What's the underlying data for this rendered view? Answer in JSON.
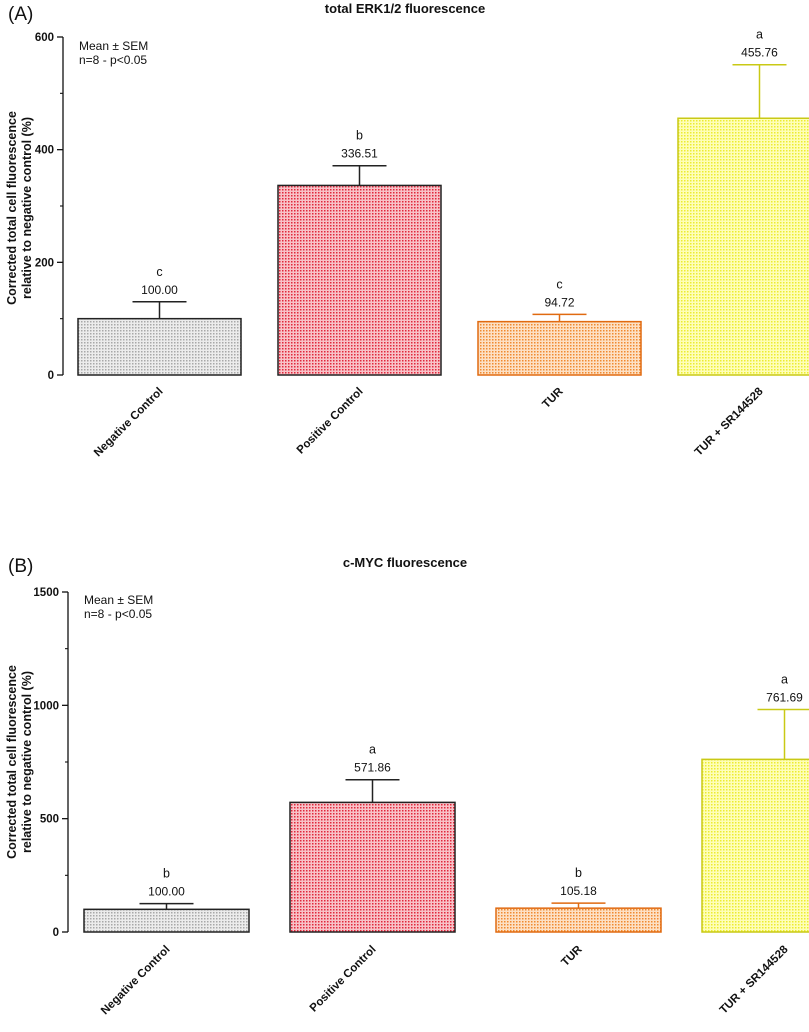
{
  "colors": {
    "negative_fill": "#d9d9d9",
    "negative_stroke": "#222222",
    "positive_fill": "#f07a86",
    "positive_stroke": "#222222",
    "tur_fill": "#f8b27a",
    "tur_stroke": "#e06a10",
    "sr_fill": "#fbfb7a",
    "sr_stroke": "#c9c915"
  },
  "chart_data": [
    {
      "type": "bar",
      "panel": "(A)",
      "title": "total ERK1/2 fluorescence",
      "ylabel_lines": [
        "Corrected total cell fluorescence",
        "relative to negative control (%)"
      ],
      "xlabel": "",
      "ylim": [
        0,
        600
      ],
      "yticks": [
        0,
        200,
        400,
        600
      ],
      "note_lines": [
        "Mean ± SEM",
        "n=8 - p<0.05"
      ],
      "categories": [
        "Negative Control",
        "Positive Control",
        "TUR",
        "TUR + SR144528"
      ],
      "values": [
        100.0,
        336.51,
        94.72,
        455.76
      ],
      "errors": [
        30,
        35,
        13,
        95
      ],
      "value_labels": [
        "100.00",
        "336.51",
        "94.72",
        "455.76"
      ],
      "significance": [
        "c",
        "b",
        "c",
        "a"
      ]
    },
    {
      "type": "bar",
      "panel": "(B)",
      "title": "c-MYC fluorescence",
      "ylabel_lines": [
        "Corrected total cell fluorescence",
        "relative to negative control (%)"
      ],
      "xlabel": "",
      "ylim": [
        0,
        1500
      ],
      "yticks": [
        0,
        500,
        1000,
        1500
      ],
      "note_lines": [
        "Mean ± SEM",
        "n=8 - p<0.05"
      ],
      "categories": [
        "Negative Control",
        "Positive Control",
        "TUR",
        "TUR + SR144528"
      ],
      "values": [
        100.0,
        571.86,
        105.18,
        761.69
      ],
      "errors": [
        25,
        100,
        22,
        220
      ],
      "value_labels": [
        "100.00",
        "571.86",
        "105.18",
        "761.69"
      ],
      "significance": [
        "b",
        "a",
        "b",
        "a"
      ]
    }
  ]
}
